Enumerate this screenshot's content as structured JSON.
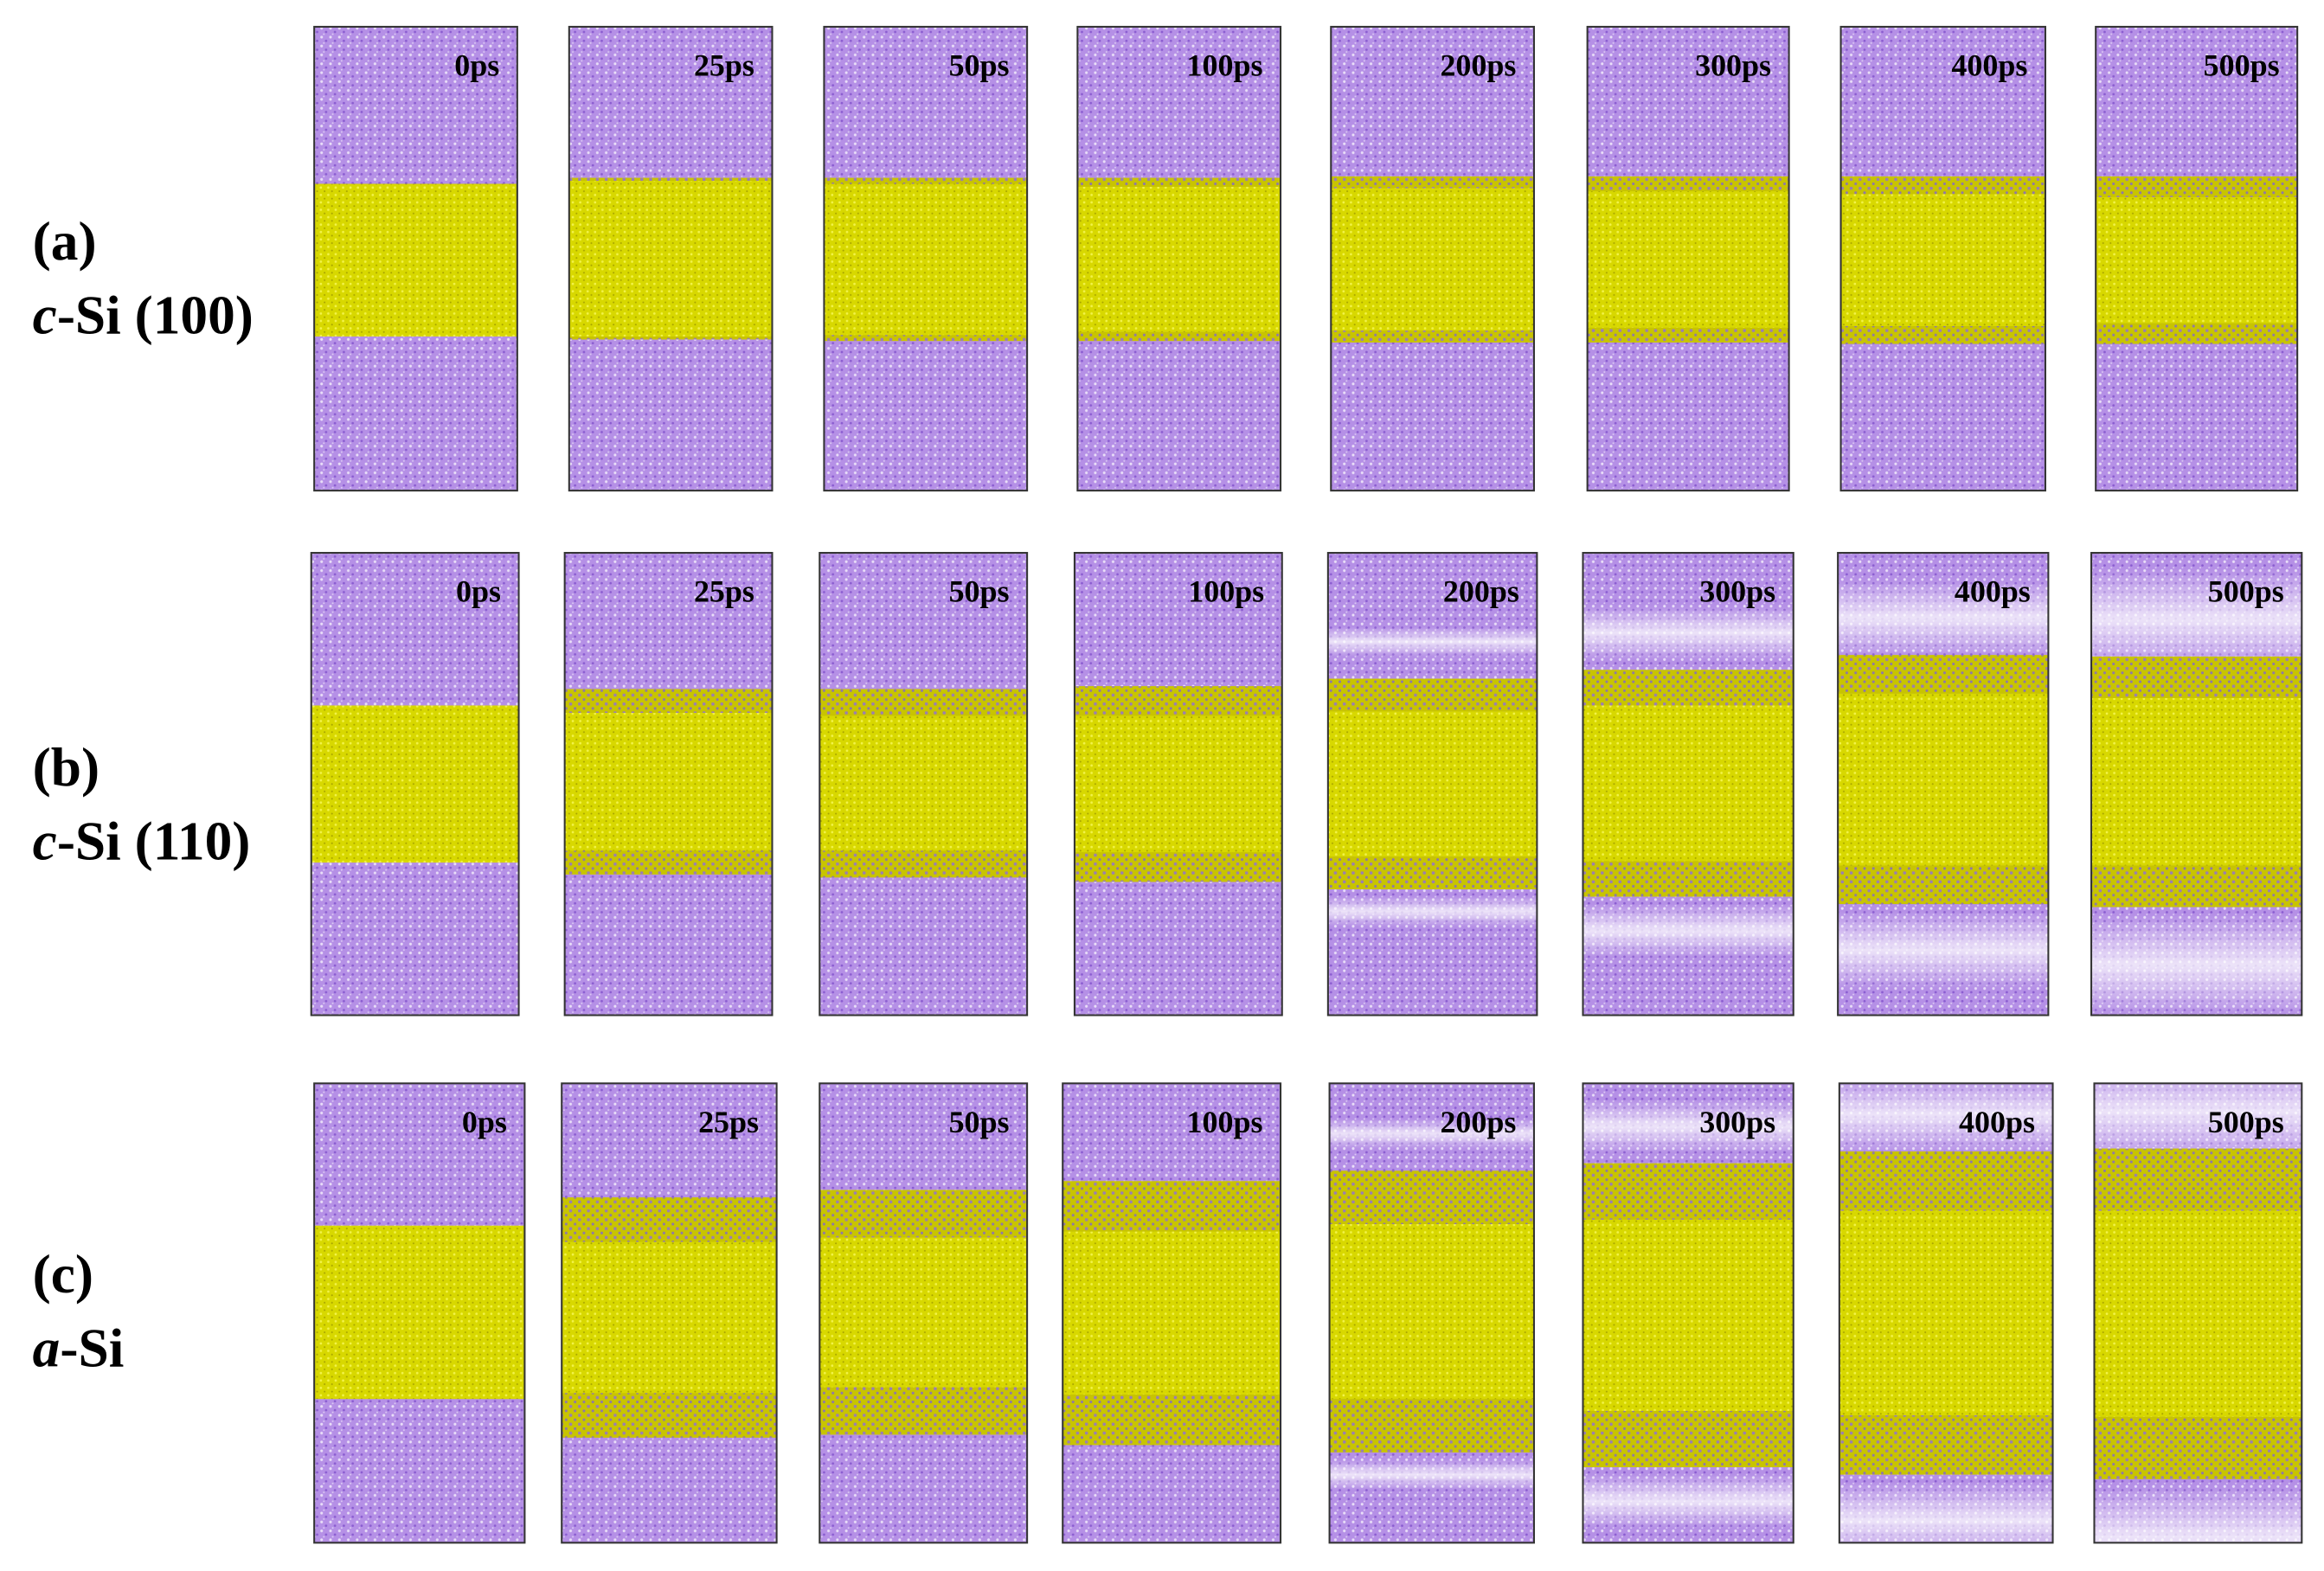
{
  "rows": [
    {
      "label": "(a)",
      "material": {
        "prefix": "c",
        "name": "-Si (100)"
      },
      "times": [
        "0ps",
        "25ps",
        "50ps",
        "100ps",
        "200ps",
        "300ps",
        "400ps",
        "500ps"
      ]
    },
    {
      "label": "(b)",
      "material": {
        "prefix": "c",
        "name": "-Si (110)"
      },
      "times": [
        "0ps",
        "25ps",
        "50ps",
        "100ps",
        "200ps",
        "300ps",
        "400ps",
        "500ps"
      ]
    },
    {
      "label": "(c)",
      "material": {
        "prefix": "a",
        "name": "-Si"
      },
      "times": [
        "0ps",
        "25ps",
        "50ps",
        "100ps",
        "200ps",
        "300ps",
        "400ps",
        "500ps"
      ]
    }
  ]
}
